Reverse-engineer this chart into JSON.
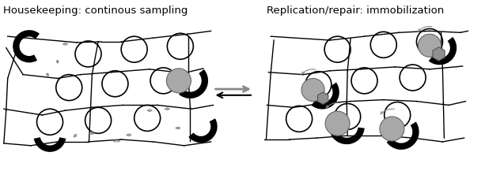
{
  "title_left": "Housekeeping: continous sampling",
  "title_right": "Replication/repair: immobilization",
  "bg_color": "#ffffff",
  "title_fontsize": 9.5,
  "nucleosome_edge": "#000000",
  "motor_color": "#000000",
  "gray_color": "#a8a8a8",
  "gray_hex_color": "#888888",
  "arrow_color": "#888888",
  "line_color": "#000000",
  "center_arrow_color": "#666666"
}
